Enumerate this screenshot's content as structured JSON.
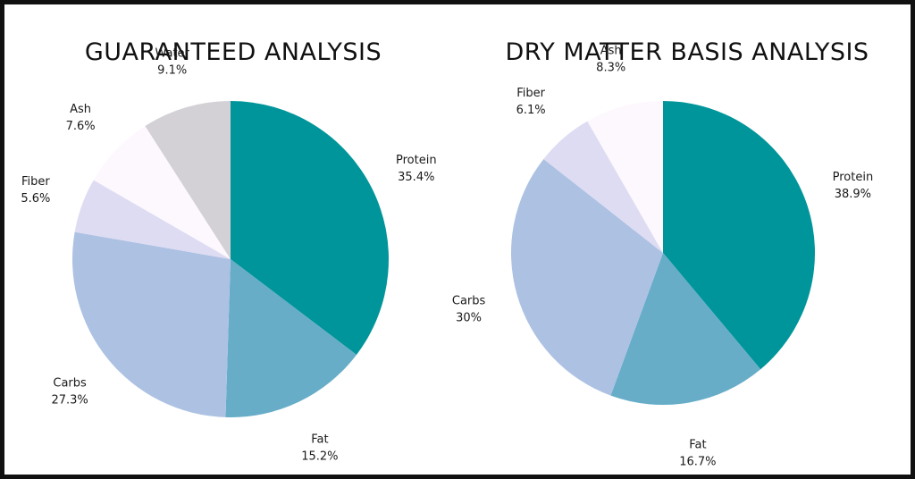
{
  "chart_data": [
    {
      "type": "pie",
      "title": "GUARANTEED ANALYSIS",
      "slices": [
        {
          "label": "Protein",
          "value": 35.4,
          "value_text": "35.4%",
          "color": "#00959a"
        },
        {
          "label": "Fat",
          "value": 15.2,
          "value_text": "15.2%",
          "color": "#67adc8"
        },
        {
          "label": "Carbs",
          "value": 27.3,
          "value_text": "27.3%",
          "color": "#adc1e3"
        },
        {
          "label": "Fiber",
          "value": 5.6,
          "value_text": "5.6%",
          "color": "#dedcf2"
        },
        {
          "label": "Ash",
          "value": 7.6,
          "value_text": "7.6%",
          "color": "#fdf8fd"
        },
        {
          "label": "Water",
          "value": 9.1,
          "value_text": "9.1%",
          "color": "#d3d1d6"
        }
      ]
    },
    {
      "type": "pie",
      "title": "DRY MATTER BASIS ANALYSIS",
      "slices": [
        {
          "label": "Protein",
          "value": 38.9,
          "value_text": "38.9%",
          "color": "#00959a"
        },
        {
          "label": "Fat",
          "value": 16.7,
          "value_text": "16.7%",
          "color": "#67adc8"
        },
        {
          "label": "Carbs",
          "value": 30,
          "value_text": "30%",
          "color": "#adc1e3"
        },
        {
          "label": "Fiber",
          "value": 6.1,
          "value_text": "6.1%",
          "color": "#dedcf2"
        },
        {
          "label": "Ash",
          "value": 8.3,
          "value_text": "8.3%",
          "color": "#fdf8fd"
        }
      ]
    }
  ]
}
